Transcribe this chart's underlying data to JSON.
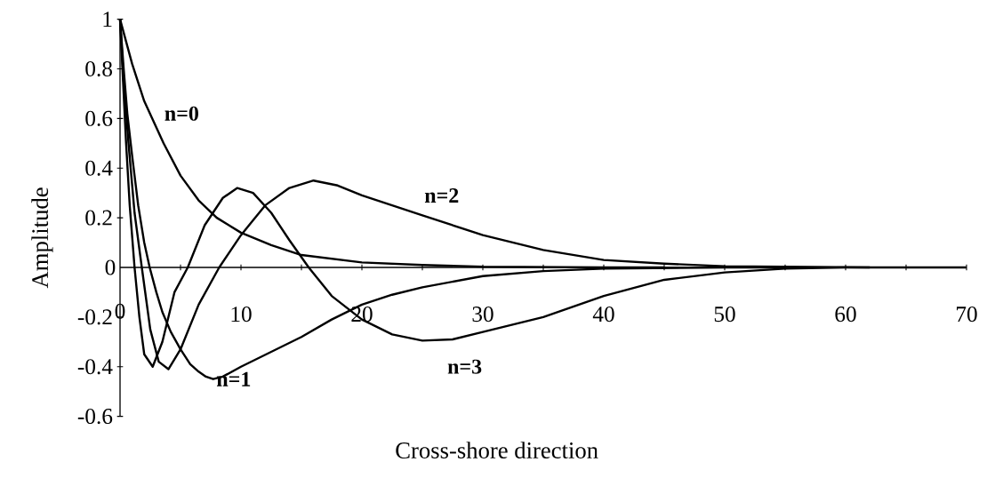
{
  "chart_data": {
    "type": "line",
    "xlabel": "Cross-shore direction",
    "ylabel": "Amplitude",
    "xlim": [
      0,
      70
    ],
    "ylim": [
      -0.6,
      1
    ],
    "xticks": [
      0,
      {
        "value": 5,
        "label": null
      },
      10,
      {
        "value": 15,
        "label": null
      },
      20,
      {
        "value": 25,
        "label": null
      },
      30,
      {
        "value": 35,
        "label": null
      },
      40,
      {
        "value": 45,
        "label": null
      },
      50,
      {
        "value": 55,
        "label": null
      },
      60,
      {
        "value": 65,
        "label": null
      },
      70
    ],
    "yticks": [
      -0.6,
      -0.4,
      -0.2,
      0,
      0.2,
      0.4,
      0.6,
      0.8,
      1
    ],
    "grid": false,
    "marker": "none",
    "line_style": "solid",
    "series": [
      {
        "name": "n=0",
        "color": "#000000",
        "x": [
          0,
          1,
          2,
          3.6,
          5,
          6.5,
          8,
          10,
          12.5,
          15,
          20,
          25,
          30,
          40,
          45
        ],
        "values": [
          1,
          0.82,
          0.67,
          0.5,
          0.37,
          0.27,
          0.2,
          0.14,
          0.09,
          0.05,
          0.02,
          0.01,
          0.003,
          0,
          0
        ]
      },
      {
        "name": "n=1",
        "color": "#000000",
        "x": [
          0,
          0.3,
          0.6,
          1,
          1.5,
          2,
          2.45,
          3,
          3.5,
          4.2,
          5,
          5.8,
          6.5,
          7.1,
          7.7,
          8.5,
          10,
          12.5,
          15,
          17.5,
          20,
          22.5,
          25,
          30,
          35,
          40,
          50,
          55
        ],
        "values": [
          1,
          0.8,
          0.62,
          0.45,
          0.25,
          0.1,
          0,
          -0.1,
          -0.18,
          -0.26,
          -0.33,
          -0.39,
          -0.42,
          -0.44,
          -0.45,
          -0.44,
          -0.4,
          -0.34,
          -0.28,
          -0.21,
          -0.15,
          -0.11,
          -0.08,
          -0.035,
          -0.015,
          -0.005,
          0,
          0
        ]
      },
      {
        "name": "n=2",
        "color": "#000000",
        "x": [
          0,
          0.3,
          0.7,
          1.2,
          1.8,
          2.5,
          3.2,
          4,
          5,
          6.5,
          8.2,
          10,
          12,
          14,
          16,
          18,
          20,
          22.5,
          25,
          30,
          35,
          40,
          45,
          50,
          62
        ],
        "values": [
          1,
          0.75,
          0.5,
          0.22,
          0,
          -0.25,
          -0.38,
          -0.41,
          -0.33,
          -0.15,
          0,
          0.13,
          0.25,
          0.32,
          0.35,
          0.33,
          0.29,
          0.25,
          0.21,
          0.13,
          0.07,
          0.03,
          0.015,
          0.005,
          0
        ]
      },
      {
        "name": "n=3",
        "color": "#000000",
        "x": [
          0,
          0.25,
          0.5,
          0.8,
          1.2,
          1.6,
          2,
          2.7,
          3.5,
          4.5,
          5.6,
          7,
          8.5,
          9.7,
          11,
          12.5,
          14,
          15.6,
          17.5,
          20,
          22.5,
          25,
          27.5,
          30,
          35,
          40,
          45,
          50,
          55,
          60,
          70
        ],
        "values": [
          1,
          0.75,
          0.5,
          0.25,
          0,
          -0.2,
          -0.35,
          -0.4,
          -0.3,
          -0.1,
          0,
          0.17,
          0.28,
          0.32,
          0.3,
          0.22,
          0.11,
          0,
          -0.115,
          -0.21,
          -0.27,
          -0.295,
          -0.29,
          -0.26,
          -0.2,
          -0.115,
          -0.05,
          -0.02,
          -0.005,
          0,
          0
        ]
      }
    ]
  }
}
